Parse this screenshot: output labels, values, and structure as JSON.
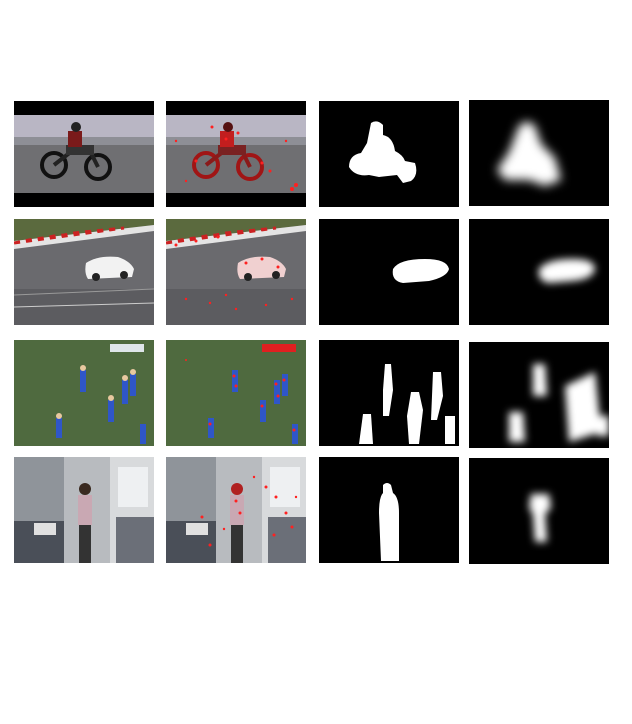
{
  "figure": {
    "rows": [
      {
        "scene": "motorcycle",
        "columns": [
          "frame",
          "frame-with-red-feature-points",
          "ground-truth-mask",
          "saliency-map"
        ]
      },
      {
        "scene": "sports-car",
        "columns": [
          "frame",
          "frame-with-red-feature-points",
          "ground-truth-mask",
          "saliency-map"
        ]
      },
      {
        "scene": "soccer-players",
        "columns": [
          "frame",
          "frame-with-red-feature-points",
          "ground-truth-mask",
          "saliency-map"
        ]
      },
      {
        "scene": "person-in-office",
        "columns": [
          "frame",
          "frame-with-red-feature-points",
          "ground-truth-mask",
          "saliency-map"
        ]
      }
    ],
    "colors": {
      "background": "#ffffff",
      "mask_fg": "#ffffff",
      "mask_bg": "#000000",
      "feature_points": "#ff2020"
    }
  }
}
